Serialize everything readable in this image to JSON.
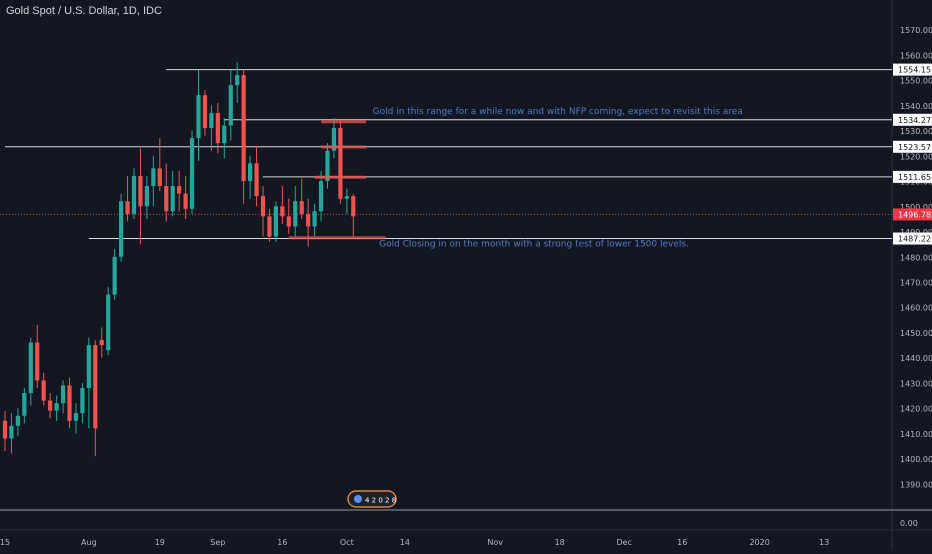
{
  "header": {
    "title": "Gold Spot / U.S. Dollar, 1D, IDC"
  },
  "colors": {
    "background": "#131722",
    "up": "#26a69a",
    "down": "#ef5350",
    "level_line": "#d9d9d9",
    "text": "#b2b5be",
    "annotation": "#4a7bc8",
    "axis_line": "#2a2e39",
    "current_price": "#f23645"
  },
  "chart_data": {
    "type": "candlestick",
    "ylim": [
      1385,
      1575
    ],
    "y_ticks": [
      "1570.00",
      "1560.00",
      "1550.00",
      "1540.00",
      "1530.00",
      "1520.00",
      "1510.00",
      "1500.00",
      "1490.00",
      "1480.00",
      "1470.00",
      "1460.00",
      "1450.00",
      "1440.00",
      "1430.00",
      "1420.00",
      "1410.00",
      "1400.00",
      "1390.00"
    ],
    "y_tick_values": [
      1570,
      1560,
      1550,
      1540,
      1530,
      1520,
      1510,
      1500,
      1490,
      1480,
      1470,
      1460,
      1450,
      1440,
      1430,
      1420,
      1410,
      1400,
      1390
    ],
    "x_ticks": [
      {
        "label": "15",
        "bar": 0
      },
      {
        "label": "Aug",
        "bar": 13
      },
      {
        "label": "19",
        "bar": 24
      },
      {
        "label": "Sep",
        "bar": 33
      },
      {
        "label": "16",
        "bar": 43
      },
      {
        "label": "Oct",
        "bar": 53
      },
      {
        "label": "14",
        "bar": 62
      },
      {
        "label": "Nov",
        "bar": 76
      },
      {
        "label": "18",
        "bar": 86
      },
      {
        "label": "Dec",
        "bar": 96
      },
      {
        "label": "16",
        "bar": 105
      },
      {
        "label": "2020",
        "bar": 117
      },
      {
        "label": "13",
        "bar": 127
      }
    ],
    "candles": [
      {
        "o": 1415,
        "h": 1419,
        "l": 1403,
        "c": 1408
      },
      {
        "o": 1408,
        "h": 1418,
        "l": 1402,
        "c": 1413
      },
      {
        "o": 1413,
        "h": 1420,
        "l": 1409,
        "c": 1417
      },
      {
        "o": 1417,
        "h": 1428,
        "l": 1414,
        "c": 1426
      },
      {
        "o": 1426,
        "h": 1448,
        "l": 1421,
        "c": 1446
      },
      {
        "o": 1446,
        "h": 1453,
        "l": 1428,
        "c": 1431
      },
      {
        "o": 1431,
        "h": 1434,
        "l": 1421,
        "c": 1423
      },
      {
        "o": 1423,
        "h": 1426,
        "l": 1416,
        "c": 1419
      },
      {
        "o": 1419,
        "h": 1425,
        "l": 1415,
        "c": 1422
      },
      {
        "o": 1422,
        "h": 1431,
        "l": 1418,
        "c": 1429
      },
      {
        "o": 1429,
        "h": 1432,
        "l": 1412,
        "c": 1415
      },
      {
        "o": 1415,
        "h": 1422,
        "l": 1410,
        "c": 1418
      },
      {
        "o": 1418,
        "h": 1430,
        "l": 1414,
        "c": 1428
      },
      {
        "o": 1428,
        "h": 1448,
        "l": 1412,
        "c": 1445
      },
      {
        "o": 1445,
        "h": 1447,
        "l": 1401,
        "c": 1412
      },
      {
        "o": 1447,
        "h": 1452,
        "l": 1440,
        "c": 1445
      },
      {
        "o": 1443,
        "h": 1468,
        "l": 1441,
        "c": 1465
      },
      {
        "o": 1465,
        "h": 1483,
        "l": 1463,
        "c": 1480
      },
      {
        "o": 1480,
        "h": 1505,
        "l": 1478,
        "c": 1502
      },
      {
        "o": 1502,
        "h": 1512,
        "l": 1494,
        "c": 1497
      },
      {
        "o": 1497,
        "h": 1515,
        "l": 1495,
        "c": 1512
      },
      {
        "o": 1512,
        "h": 1523,
        "l": 1485,
        "c": 1500
      },
      {
        "o": 1500,
        "h": 1512,
        "l": 1495,
        "c": 1508
      },
      {
        "o": 1508,
        "h": 1520,
        "l": 1500,
        "c": 1515
      },
      {
        "o": 1515,
        "h": 1527,
        "l": 1506,
        "c": 1508
      },
      {
        "o": 1508,
        "h": 1517,
        "l": 1494,
        "c": 1498
      },
      {
        "o": 1498,
        "h": 1514,
        "l": 1496,
        "c": 1508
      },
      {
        "o": 1508,
        "h": 1514,
        "l": 1498,
        "c": 1505
      },
      {
        "o": 1505,
        "h": 1512,
        "l": 1495,
        "c": 1499
      },
      {
        "o": 1499,
        "h": 1530,
        "l": 1497,
        "c": 1527
      },
      {
        "o": 1527,
        "h": 1554,
        "l": 1518,
        "c": 1544
      },
      {
        "o": 1544,
        "h": 1546,
        "l": 1528,
        "c": 1531
      },
      {
        "o": 1531,
        "h": 1540,
        "l": 1522,
        "c": 1537
      },
      {
        "o": 1537,
        "h": 1541,
        "l": 1521,
        "c": 1525
      },
      {
        "o": 1525,
        "h": 1535,
        "l": 1519,
        "c": 1532
      },
      {
        "o": 1532,
        "h": 1554,
        "l": 1526,
        "c": 1548
      },
      {
        "o": 1548,
        "h": 1557,
        "l": 1541,
        "c": 1552
      },
      {
        "o": 1552,
        "h": 1554,
        "l": 1501,
        "c": 1510
      },
      {
        "o": 1510,
        "h": 1520,
        "l": 1503,
        "c": 1517
      },
      {
        "o": 1517,
        "h": 1524,
        "l": 1500,
        "c": 1504
      },
      {
        "o": 1504,
        "h": 1508,
        "l": 1488,
        "c": 1496
      },
      {
        "o": 1496,
        "h": 1499,
        "l": 1486,
        "c": 1488
      },
      {
        "o": 1488,
        "h": 1502,
        "l": 1486,
        "c": 1500
      },
      {
        "o": 1500,
        "h": 1508,
        "l": 1493,
        "c": 1496
      },
      {
        "o": 1496,
        "h": 1503,
        "l": 1489,
        "c": 1492
      },
      {
        "o": 1492,
        "h": 1508,
        "l": 1488,
        "c": 1502
      },
      {
        "o": 1502,
        "h": 1511,
        "l": 1495,
        "c": 1497
      },
      {
        "o": 1497,
        "h": 1503,
        "l": 1484,
        "c": 1492
      },
      {
        "o": 1492,
        "h": 1501,
        "l": 1488,
        "c": 1498
      },
      {
        "o": 1498,
        "h": 1514,
        "l": 1494,
        "c": 1510
      },
      {
        "o": 1510,
        "h": 1525,
        "l": 1507,
        "c": 1522
      },
      {
        "o": 1522,
        "h": 1535,
        "l": 1519,
        "c": 1531
      },
      {
        "o": 1531,
        "h": 1534,
        "l": 1501,
        "c": 1503
      },
      {
        "o": 1503,
        "h": 1507,
        "l": 1497,
        "c": 1504
      },
      {
        "o": 1504,
        "h": 1505,
        "l": 1487,
        "c": 1496
      }
    ],
    "levels": [
      {
        "label": "1554.15",
        "value": 1554.15,
        "from_bar": 25
      },
      {
        "label": "1534.27",
        "value": 1534.27,
        "from_bar": 34
      },
      {
        "label": "1523.57",
        "value": 1523.57,
        "from_bar": 0
      },
      {
        "label": "1511.65",
        "value": 1511.65,
        "from_bar": 40
      },
      {
        "label": "1487.22",
        "value": 1487.22,
        "from_bar": 13
      }
    ],
    "red_markers": [
      {
        "value": 1533.5,
        "from_bar": 49,
        "to_bar": 56
      },
      {
        "value": 1523.5,
        "from_bar": 49,
        "to_bar": 56
      },
      {
        "value": 1511.5,
        "from_bar": 48,
        "to_bar": 56
      },
      {
        "value": 1487.5,
        "from_bar": 44,
        "to_bar": 59
      }
    ],
    "current_price": {
      "label": "1496.78",
      "value": 1496.78
    },
    "annotations": [
      {
        "text": "Gold in this range for a while now and with NFP coming, expect to revisit this area",
        "value": 1536.6,
        "bar": 57
      },
      {
        "text": "Gold Closing in on the month with a strong test of lower 1500 levels.",
        "value": 1484,
        "bar": 58
      }
    ],
    "pane_label": "0.00",
    "event_badge": "4 2 0 2 8"
  }
}
